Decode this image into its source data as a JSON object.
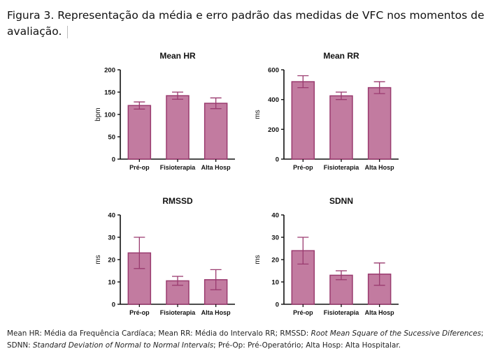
{
  "caption": {
    "text": "Figura 3. Representação da média e erro padrão das medidas de VFC nos momentos de avaliação."
  },
  "colors": {
    "bar_fill": "#c27ba0",
    "bar_stroke": "#9a3b6f",
    "axis": "#111111"
  },
  "chart_data": [
    {
      "type": "bar",
      "title": "Mean HR",
      "ylabel": "bpm",
      "categories": [
        "Pré-op",
        "Fisioterapia",
        "Alta Hosp"
      ],
      "values": [
        120,
        142,
        125
      ],
      "errors": [
        8,
        8,
        12
      ],
      "ylim": [
        0,
        200
      ],
      "yticks": [
        "0",
        "50",
        "100",
        "150",
        "200"
      ]
    },
    {
      "type": "bar",
      "title": "Mean RR",
      "ylabel": "ms",
      "categories": [
        "Pré-op",
        "Fisioterapia",
        "Alta Hosp"
      ],
      "values": [
        520,
        425,
        480
      ],
      "errors": [
        40,
        25,
        40
      ],
      "ylim": [
        0,
        600
      ],
      "yticks": [
        "0",
        "200",
        "400",
        "600"
      ]
    },
    {
      "type": "bar",
      "title": "RMSSD",
      "ylabel": "ms",
      "categories": [
        "Pré-op",
        "Fisioterapia",
        "Alta Hosp"
      ],
      "values": [
        23,
        10.5,
        11
      ],
      "errors": [
        7,
        2,
        4.5
      ],
      "ylim": [
        0,
        40
      ],
      "yticks": [
        "0",
        "10",
        "20",
        "30",
        "40"
      ]
    },
    {
      "type": "bar",
      "title": "SDNN",
      "ylabel": "ms",
      "categories": [
        "Pré-op",
        "Fisioterapia",
        "Alta Hosp"
      ],
      "values": [
        24,
        13,
        13.5
      ],
      "errors": [
        6,
        2,
        5
      ],
      "ylim": [
        0,
        40
      ],
      "yticks": [
        "0",
        "10",
        "20",
        "30",
        "40"
      ]
    }
  ],
  "footnote": {
    "line1_plain1": "Mean HR: Média da Frequência Cardíaca; Mean RR: Média do Intervalo RR; RMSSD: ",
    "line1_italic1": "Root Mean Square of the Sucessive Diferences",
    "line1_plain2": ";",
    "line2_plain1": "SDNN: ",
    "line2_italic1": "Standard Deviation of Normal to Normal Intervals",
    "line2_plain2": "; Pré-Op: Pré-Operatório; Alta Hosp: Alta Hospitalar."
  }
}
